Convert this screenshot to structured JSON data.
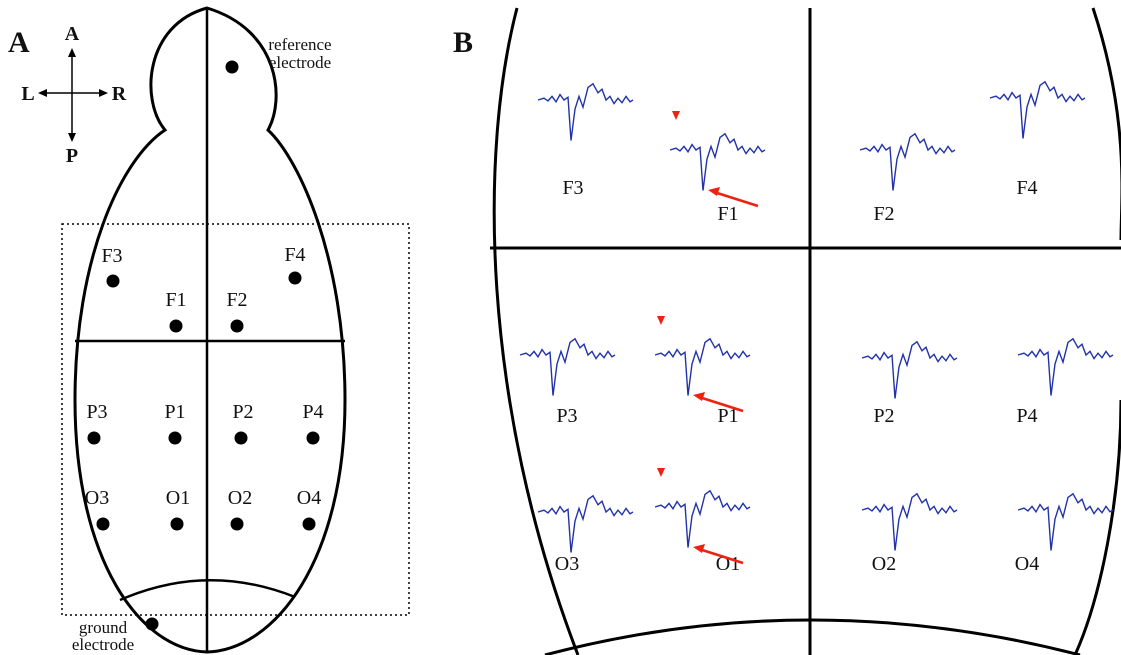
{
  "panel_a": {
    "label": "A",
    "compass": {
      "up": "A",
      "left": "L",
      "right": "R",
      "down": "P"
    },
    "reference_label": [
      "reference",
      "electrode"
    ],
    "ground_label": [
      "ground",
      "electrode"
    ],
    "electrodes": [
      "F3",
      "F1",
      "F2",
      "F4",
      "P3",
      "P1",
      "P2",
      "P4",
      "O3",
      "O1",
      "O2",
      "O4"
    ]
  },
  "panel_b": {
    "label": "B",
    "traces": [
      "F3",
      "F1",
      "F2",
      "F4",
      "P3",
      "P1",
      "P2",
      "P4",
      "O3",
      "O1",
      "O2",
      "O4"
    ]
  }
}
